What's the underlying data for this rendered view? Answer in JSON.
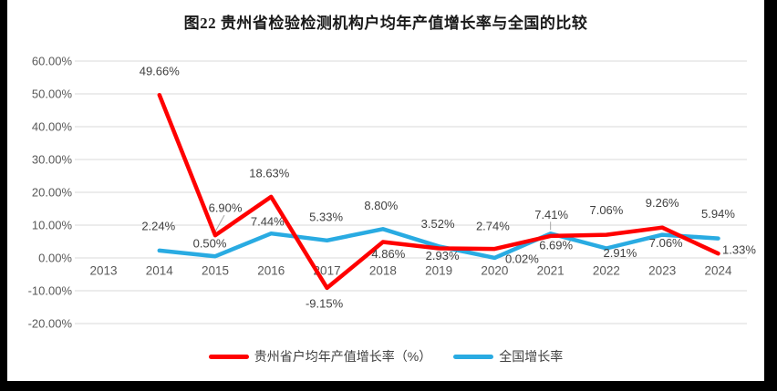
{
  "chart_data": {
    "type": "line",
    "title": "图22 贵州省检验检测机构户均年产值增长率与全国的比较",
    "x": [
      "2013",
      "2014",
      "2015",
      "2016",
      "2017",
      "2018",
      "2019",
      "2020",
      "2021",
      "2022",
      "2023",
      "2024"
    ],
    "ylim": [
      -20,
      60
    ],
    "ytick_step": 10,
    "ytick_labels": [
      "60.00%",
      "50.00%",
      "40.00%",
      "30.00%",
      "20.00%",
      "10.00%",
      "0.00%",
      "-10.00%",
      "-20.00%"
    ],
    "grid": true,
    "legend_position": "bottom",
    "series": [
      {
        "name": "贵州省户均年产值增长率（%）",
        "color": "#ff0000",
        "values": [
          null,
          49.66,
          6.9,
          18.63,
          -9.15,
          4.86,
          2.93,
          2.74,
          6.69,
          7.06,
          9.26,
          1.33
        ],
        "label_offsets": [
          null,
          [
            0,
            -26
          ],
          [
            11,
            -30
          ],
          [
            -2,
            -26
          ],
          [
            -3,
            17
          ],
          [
            6,
            13
          ],
          [
            4,
            8
          ],
          [
            -2,
            -25
          ],
          [
            6,
            10
          ],
          [
            0,
            -27
          ],
          [
            0,
            -27
          ],
          [
            23,
            -4
          ]
        ],
        "leader_indices": [
          2
        ]
      },
      {
        "name": "全国增长率",
        "color": "#29abe2",
        "values": [
          null,
          2.24,
          0.5,
          7.44,
          5.33,
          8.8,
          3.52,
          0.02,
          7.41,
          2.91,
          7.06,
          5.94
        ],
        "label_offsets": [
          null,
          [
            -1,
            -27
          ],
          [
            -6,
            -14
          ],
          [
            -4,
            -13
          ],
          [
            -1,
            -26
          ],
          [
            -2,
            -26
          ],
          [
            -1,
            -25
          ],
          [
            30,
            1
          ],
          [
            1,
            -21
          ],
          [
            15,
            5
          ],
          [
            4,
            9
          ],
          [
            0,
            -27
          ]
        ],
        "leader_indices": [
          8
        ]
      }
    ]
  },
  "colors": {
    "background": "#ffffff",
    "frame": "#000000",
    "grid": "#d9d9d9",
    "axis_text": "#595959",
    "data_label": "#404040",
    "title_text": "#1a1a1a",
    "leader": "#a6a6a6"
  }
}
